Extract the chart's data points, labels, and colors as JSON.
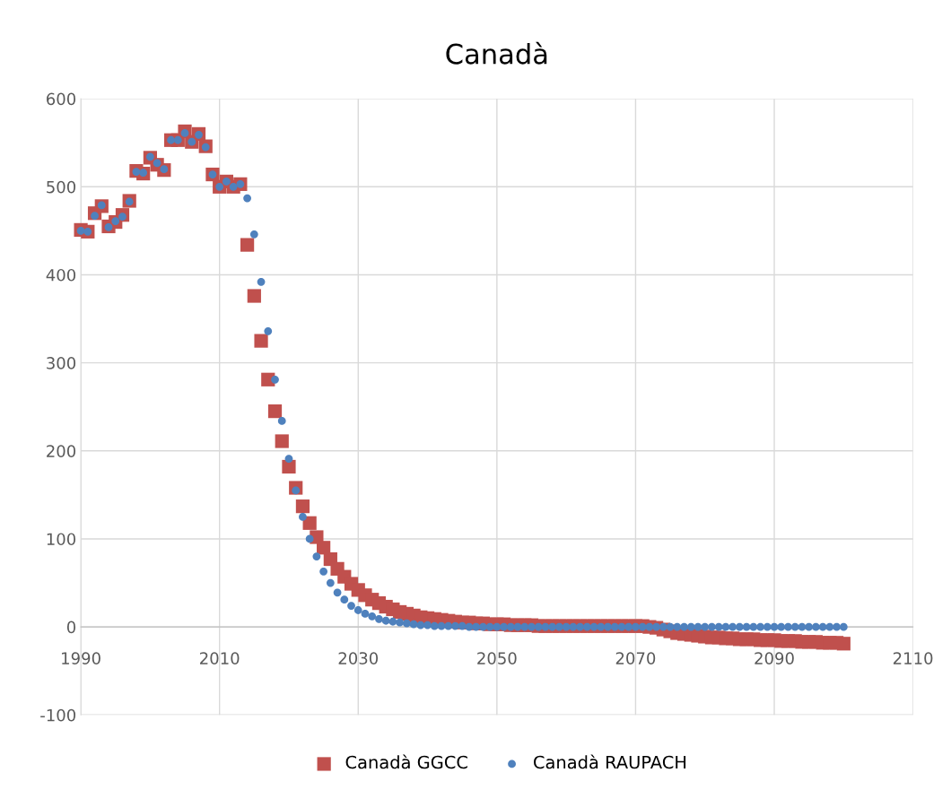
{
  "chart_data": {
    "type": "scatter",
    "title": "Canadà",
    "xlim": [
      1990,
      2110
    ],
    "xticks": [
      1990,
      2010,
      2030,
      2050,
      2070,
      2090,
      2110
    ],
    "ylim": [
      -100,
      600
    ],
    "yticks": [
      -100,
      0,
      100,
      200,
      300,
      400,
      500,
      600
    ],
    "grid": true,
    "legend": "bottom",
    "x": [
      1990,
      1991,
      1992,
      1993,
      1994,
      1995,
      1996,
      1997,
      1998,
      1999,
      2000,
      2001,
      2002,
      2003,
      2004,
      2005,
      2006,
      2007,
      2008,
      2009,
      2010,
      2011,
      2012,
      2013,
      2014,
      2015,
      2016,
      2017,
      2018,
      2019,
      2020,
      2021,
      2022,
      2023,
      2024,
      2025,
      2026,
      2027,
      2028,
      2029,
      2030,
      2031,
      2032,
      2033,
      2034,
      2035,
      2036,
      2037,
      2038,
      2039,
      2040,
      2041,
      2042,
      2043,
      2044,
      2045,
      2046,
      2047,
      2048,
      2049,
      2050,
      2051,
      2052,
      2053,
      2054,
      2055,
      2056,
      2057,
      2058,
      2059,
      2060,
      2061,
      2062,
      2063,
      2064,
      2065,
      2066,
      2067,
      2068,
      2069,
      2070,
      2071,
      2072,
      2073,
      2074,
      2075,
      2076,
      2077,
      2078,
      2079,
      2080,
      2081,
      2082,
      2083,
      2084,
      2085,
      2086,
      2087,
      2088,
      2089,
      2090,
      2091,
      2092,
      2093,
      2094,
      2095,
      2096,
      2097,
      2098,
      2099,
      2100
    ],
    "series": [
      {
        "name": "Canadà GGCC",
        "color": "#c0504d",
        "marker": "square",
        "values": [
          451,
          449,
          470,
          478,
          455,
          460,
          468,
          484,
          518,
          515,
          533,
          525,
          519,
          553,
          553,
          563,
          551,
          560,
          546,
          514,
          500,
          506,
          500,
          503,
          434,
          376,
          325,
          281,
          245,
          211,
          182,
          158,
          137,
          118,
          102,
          90,
          77,
          66,
          57,
          49,
          42,
          36,
          31,
          27,
          23,
          20,
          17,
          15,
          13,
          11,
          10,
          9,
          8,
          7,
          6,
          5,
          5,
          4,
          4,
          3,
          3,
          3,
          2,
          2,
          2,
          2,
          1,
          1,
          1,
          1,
          1,
          1,
          1,
          1,
          1,
          1,
          1,
          1,
          1,
          1,
          1,
          1,
          0,
          -1,
          -3,
          -5,
          -7,
          -8,
          -9,
          -10,
          -11,
          -12,
          -12,
          -13,
          -13,
          -14,
          -14,
          -14,
          -15,
          -15,
          -15,
          -16,
          -16,
          -16,
          -17,
          -17,
          -17,
          -18,
          -18,
          -18,
          -19
        ]
      },
      {
        "name": "Canadà RAUPACH",
        "color": "#4f81bd",
        "marker": "circle",
        "values": [
          450,
          449,
          467,
          479,
          454,
          461,
          466,
          483,
          517,
          516,
          534,
          527,
          520,
          553,
          553,
          561,
          551,
          559,
          545,
          514,
          500,
          506,
          500,
          503,
          487,
          446,
          392,
          336,
          281,
          234,
          191,
          155,
          125,
          100,
          80,
          63,
          50,
          39,
          31,
          24,
          19,
          15,
          12,
          9,
          7,
          6,
          5,
          4,
          3,
          2,
          2,
          1,
          1,
          1,
          1,
          1,
          0,
          0,
          0,
          0,
          0,
          0,
          0,
          0,
          0,
          0,
          0,
          0,
          0,
          0,
          0,
          0,
          0,
          0,
          0,
          0,
          0,
          0,
          0,
          0,
          0,
          0,
          0,
          0,
          0,
          0,
          0,
          0,
          0,
          0,
          0,
          0,
          0,
          0,
          0,
          0,
          0,
          0,
          0,
          0,
          0,
          0,
          0,
          0,
          0,
          0,
          0,
          0,
          0,
          0,
          0
        ]
      }
    ]
  }
}
